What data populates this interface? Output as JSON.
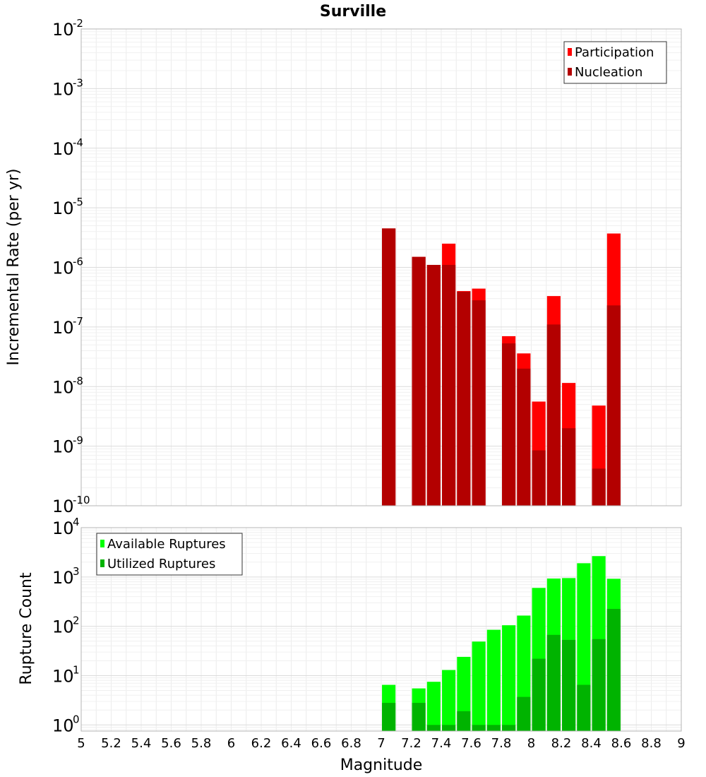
{
  "chart_data": [
    {
      "type": "bar",
      "title": "Surville",
      "xlabel": "Magnitude",
      "ylabel": "Incremental Rate (per yr)",
      "yscale": "log",
      "ylim": [
        1e-10,
        0.01
      ],
      "xlim": [
        5,
        9
      ],
      "grid": true,
      "legend_position": "top-right",
      "x": [
        7.05,
        7.25,
        7.35,
        7.45,
        7.55,
        7.65,
        7.85,
        7.95,
        8.05,
        8.15,
        8.25,
        8.45,
        8.55
      ],
      "series": [
        {
          "name": "Participation",
          "color": "#ff0000",
          "values": [
            4.5e-06,
            1.5e-06,
            1.1e-06,
            2.5e-06,
            4e-07,
            4.4e-07,
            7e-08,
            3.6e-08,
            5.6e-09,
            3.3e-07,
            1.15e-08,
            4.8e-09,
            3.7e-06
          ]
        },
        {
          "name": "Nucleation",
          "color": "#b30000",
          "values": [
            4.5e-06,
            1.5e-06,
            1.1e-06,
            1.1e-06,
            3.9e-07,
            2.8e-07,
            5.3e-08,
            2e-08,
            8.5e-10,
            1.1e-07,
            2e-09,
            4.2e-10,
            2.3e-07
          ]
        }
      ]
    },
    {
      "type": "bar",
      "xlabel": "Magnitude",
      "ylabel": "Rupture Count",
      "yscale": "log",
      "ylim": [
        0.75,
        10000
      ],
      "xlim": [
        5,
        9
      ],
      "grid": true,
      "legend_position": "top-left",
      "x": [
        7.05,
        7.25,
        7.35,
        7.45,
        7.55,
        7.65,
        7.75,
        7.85,
        7.95,
        8.05,
        8.15,
        8.25,
        8.35,
        8.45,
        8.55
      ],
      "series": [
        {
          "name": "Available Ruptures",
          "color": "#00ff00",
          "values": [
            6.5,
            5.5,
            7.5,
            13,
            24,
            49,
            85,
            105,
            165,
            600,
            930,
            950,
            1900,
            2650,
            920
          ]
        },
        {
          "name": "Utilized Ruptures",
          "color": "#00b300",
          "values": [
            2.8,
            2.8,
            1,
            1,
            1.9,
            1,
            1,
            1,
            3.7,
            22,
            67,
            53,
            6.5,
            55,
            225
          ]
        }
      ]
    }
  ],
  "x_ticks": [
    "5",
    "5.2",
    "5.4",
    "5.6",
    "5.8",
    "6",
    "6.2",
    "6.4",
    "6.6",
    "6.8",
    "7",
    "7.2",
    "7.4",
    "7.6",
    "7.8",
    "8",
    "8.2",
    "8.4",
    "8.6",
    "8.8",
    "9"
  ],
  "top_y_ticks": [
    {
      "base": "10",
      "exp": "-2"
    },
    {
      "base": "10",
      "exp": "-3"
    },
    {
      "base": "10",
      "exp": "-4"
    },
    {
      "base": "10",
      "exp": "-5"
    },
    {
      "base": "10",
      "exp": "-6"
    },
    {
      "base": "10",
      "exp": "-7"
    },
    {
      "base": "10",
      "exp": "-8"
    },
    {
      "base": "10",
      "exp": "-9"
    },
    {
      "base": "10",
      "exp": "-10"
    }
  ],
  "bottom_y_ticks": [
    {
      "base": "10",
      "exp": "4"
    },
    {
      "base": "10",
      "exp": "3"
    },
    {
      "base": "10",
      "exp": "2"
    },
    {
      "base": "10",
      "exp": "1"
    },
    {
      "base": "10",
      "exp": "0"
    }
  ]
}
